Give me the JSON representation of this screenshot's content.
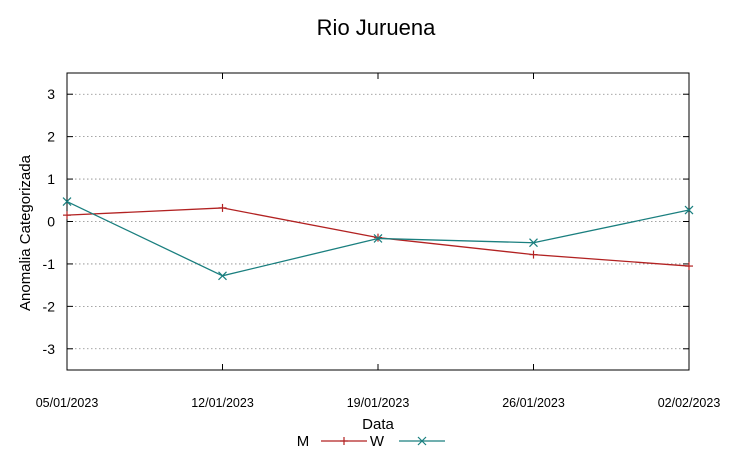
{
  "chart_data": {
    "type": "line",
    "title": "Rio Juruena",
    "xlabel": "Data",
    "ylabel": "Anomalia Categorizada",
    "categories": [
      "05/01/2023",
      "12/01/2023",
      "19/01/2023",
      "26/01/2023",
      "02/02/2023"
    ],
    "yticks": [
      "3",
      "2",
      "1",
      "0",
      "-1",
      "-2",
      "-3"
    ],
    "ylim": [
      -3.5,
      3.5
    ],
    "grid": "horizontal dotted",
    "legend_position": "bottom",
    "series": [
      {
        "name": "M",
        "color": "#b22222",
        "marker": "plus",
        "values": [
          0.15,
          0.32,
          -0.38,
          -0.78,
          -1.05
        ]
      },
      {
        "name": "W",
        "color": "#1a7f7f",
        "marker": "x",
        "values": [
          0.47,
          -1.28,
          -0.4,
          -0.5,
          0.27
        ]
      }
    ]
  }
}
